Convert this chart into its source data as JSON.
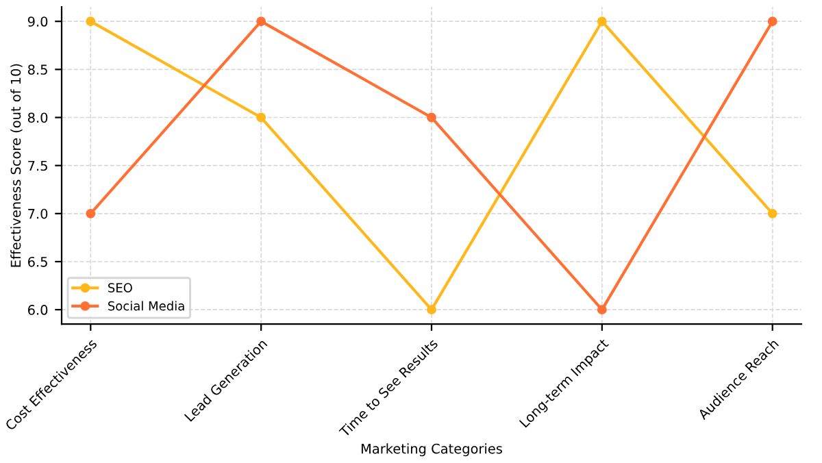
{
  "chart_data": {
    "type": "line",
    "xlabel": "Marketing Categories",
    "ylabel": "Effectiveness Score (out of 10)",
    "categories": [
      "Cost Effectiveness",
      "Lead Generation",
      "Time to See Results",
      "Long-term Impact",
      "Audience Reach"
    ],
    "series": [
      {
        "name": "SEO",
        "color": "#ffb81c",
        "values": [
          9,
          8,
          6,
          9,
          7
        ]
      },
      {
        "name": "Social Media",
        "color": "#ff7034",
        "values": [
          7,
          9,
          8,
          6,
          9
        ]
      }
    ],
    "ylim": [
      5.85,
      9.15
    ],
    "yticks": [
      {
        "value": 6,
        "label": "6.0"
      },
      {
        "value": 6.5,
        "label": "6.5"
      },
      {
        "value": 7,
        "label": "7.0"
      },
      {
        "value": 7.5,
        "label": "7.5"
      },
      {
        "value": 8,
        "label": "8.0"
      },
      {
        "value": 8.5,
        "label": "8.5"
      },
      {
        "value": 9,
        "label": "9.0"
      }
    ],
    "grid": true,
    "legend": "bottom left",
    "marker": "circle",
    "line_style": "solid"
  }
}
